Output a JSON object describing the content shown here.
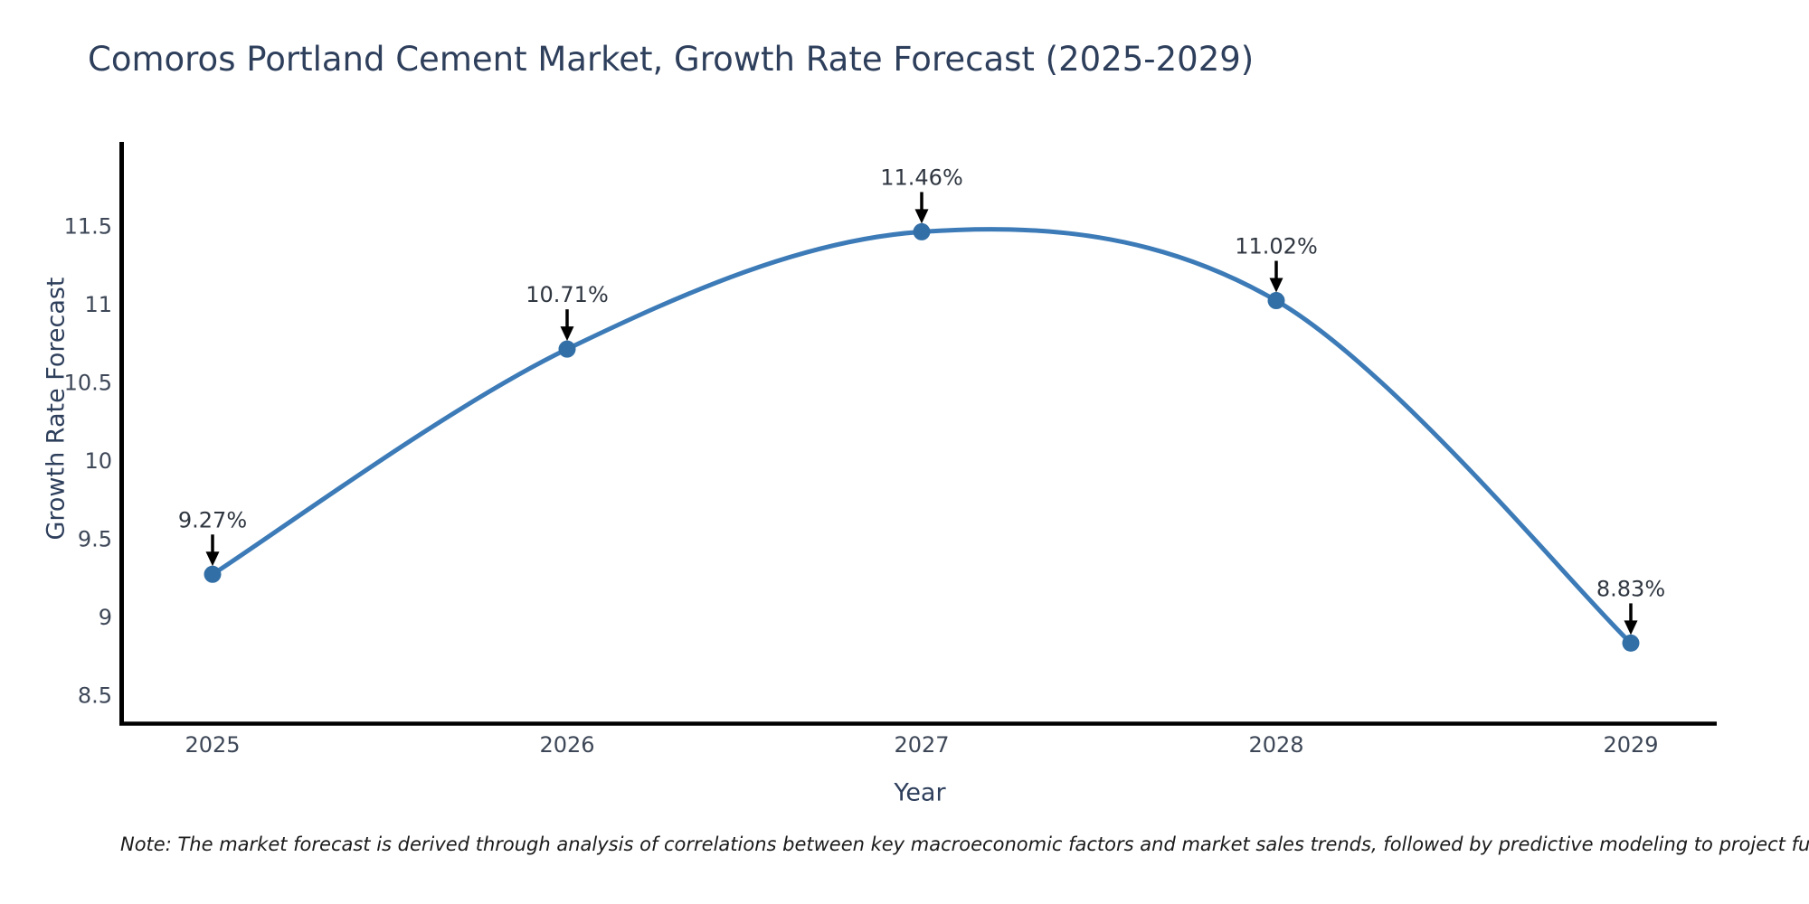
{
  "title": "Comoros Portland Cement Market, Growth Rate Forecast (2025-2029)",
  "axes": {
    "xlabel": "Year",
    "ylabel": "Growth Rate Forecast"
  },
  "footnote": "Note: The market forecast is derived through analysis of correlations between key macroeconomic factors and market sales trends, followed by predictive modeling to project future sal",
  "chart_data": {
    "type": "line",
    "title": "Comoros Portland Cement Market, Growth Rate Forecast (2025-2029)",
    "xlabel": "Year",
    "ylabel": "Growth Rate Forecast",
    "categories": [
      "2025",
      "2026",
      "2027",
      "2028",
      "2029"
    ],
    "values": [
      9.27,
      10.71,
      11.46,
      11.02,
      8.83
    ],
    "point_labels": [
      "9.27%",
      "10.71%",
      "11.46%",
      "11.02%",
      "8.83%"
    ],
    "yticks": [
      8.5,
      9.0,
      9.5,
      10.0,
      10.5,
      11.0,
      11.5
    ],
    "ytick_labels": [
      "8.5",
      "9",
      "9.5",
      "10",
      "10.5",
      "11",
      "11.5"
    ],
    "ylim": [
      8.3,
      12.0
    ],
    "grid": false,
    "legend_position": "none",
    "line_smooth": true,
    "annotation_arrows": "down-arrow-to-point",
    "colors": {
      "line": "#3c7bb7",
      "marker": "#326fa6",
      "axis_spine": "#000000",
      "title_text": "#2e3f5c",
      "tick_text": "#3d4757",
      "annotation_text": "#2f3640",
      "arrow": "#000000",
      "note_text": "#1a1a1a",
      "background": "#ffffff"
    }
  }
}
